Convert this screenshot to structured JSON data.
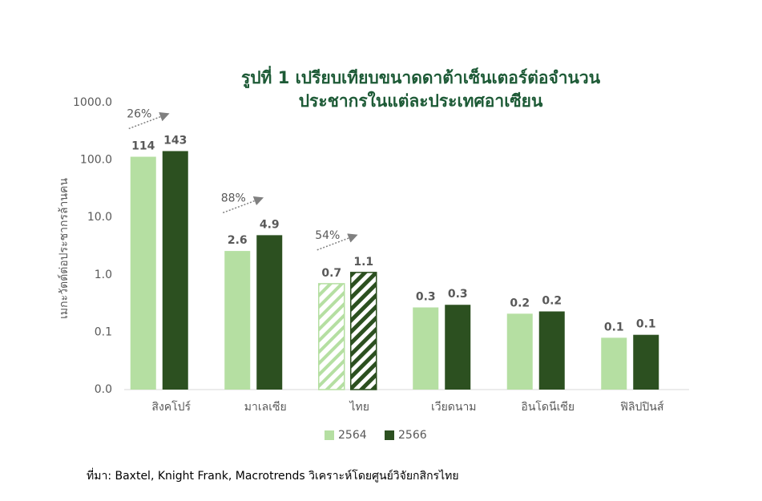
{
  "chart_data": {
    "type": "bar",
    "title": [
      "รูปที่ 1 เปรียบเทียบขนาดดาต้าเซ็นเตอร์ต่อจำนวน",
      "ประชากรในแต่ละประเทศอาเซียน"
    ],
    "y_label": "เมกะวัตต์ต่อประชากรล้านคน",
    "source": "ที่มา: Baxtel, Knight Frank, Macrotrends วิเคราะห์โดยศูนย์วิจัยกสิกรไทย",
    "categories": [
      "สิงคโปร์",
      "มาเลเซีย",
      "ไทย",
      "เวียดนาม",
      "อินโดนีเซีย",
      "ฟิลิปปินส์"
    ],
    "series": [
      {
        "name": "2564",
        "color": "#b5dfa2",
        "values": [
          114,
          2.6,
          0.7,
          0.27,
          0.21,
          0.08
        ],
        "value_labels": [
          "114",
          "2.6",
          "0.7",
          "0.3",
          "0.2",
          "0.1"
        ]
      },
      {
        "name": "2566",
        "color": "#2c5020",
        "values": [
          143,
          4.9,
          1.1,
          0.3,
          0.23,
          0.09
        ],
        "value_labels": [
          "143",
          "4.9",
          "1.1",
          "0.3",
          "0.2",
          "0.1"
        ]
      }
    ],
    "annotations": [
      "26%",
      "88%",
      "54%"
    ],
    "hatched": [
      2
    ],
    "log_scale": true,
    "ylim": [
      0.01,
      1000
    ],
    "yticks": [
      {
        "value": 0.01,
        "label": "0.0"
      },
      0.1,
      {
        "value": 1,
        "label": "1.0"
      },
      {
        "value": 10,
        "label": "10.0"
      },
      {
        "value": 100,
        "label": "100.0"
      },
      {
        "value": 1000,
        "label": "1000.0"
      }
    ],
    "legend": "bottom"
  }
}
